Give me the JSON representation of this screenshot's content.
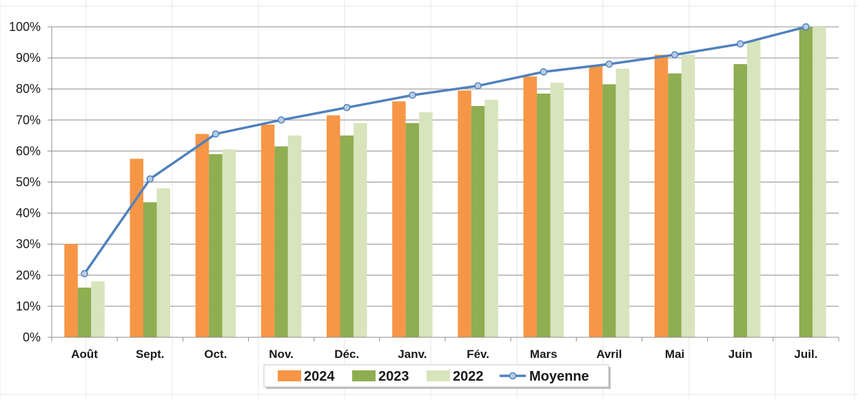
{
  "chart_data": {
    "type": "bar",
    "categories": [
      "Août",
      "Sept.",
      "Oct.",
      "Nov.",
      "Déc.",
      "Janv.",
      "Fév.",
      "Mars",
      "Avril",
      "Mai",
      "Juin",
      "Juil."
    ],
    "series": [
      {
        "name": "2024",
        "kind": "bar",
        "color": "#f79646",
        "values": [
          30,
          57.5,
          65.5,
          68.5,
          71.5,
          76,
          79.5,
          84,
          87.5,
          91,
          null,
          null
        ]
      },
      {
        "name": "2023",
        "kind": "bar",
        "color": "#8fad51",
        "values": [
          16,
          43.5,
          59,
          61.5,
          65,
          69,
          74.5,
          78.5,
          81.5,
          85,
          88,
          100
        ]
      },
      {
        "name": "2022",
        "kind": "bar",
        "color": "#d8e4bc",
        "values": [
          18,
          48,
          60.5,
          65,
          69,
          72.5,
          76.5,
          82,
          86.5,
          91,
          95.5,
          100
        ]
      },
      {
        "name": "Moyenne",
        "kind": "line",
        "color": "#4f81bd",
        "marker_fill": "#b9cde5",
        "values": [
          20.5,
          51,
          65.5,
          70,
          74,
          78,
          81,
          85.5,
          88,
          91,
          94.5,
          100
        ]
      }
    ],
    "yticks": [
      "0%",
      "10%",
      "20%",
      "30%",
      "40%",
      "50%",
      "60%",
      "70%",
      "80%",
      "90%",
      "100%"
    ],
    "ylim": [
      0,
      100
    ],
    "grid": true,
    "legend_position": "bottom"
  }
}
